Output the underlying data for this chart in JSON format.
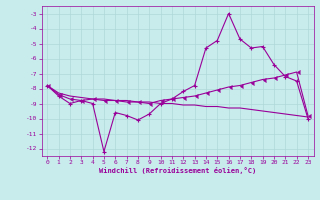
{
  "xlabel": "Windchill (Refroidissement éolien,°C)",
  "bg_color": "#c8ecec",
  "grid_color": "#b0d8d8",
  "line_color": "#990099",
  "xlim": [
    -0.5,
    23.5
  ],
  "ylim": [
    -12.5,
    -2.5
  ],
  "yticks": [
    -12,
    -11,
    -10,
    -9,
    -8,
    -7,
    -6,
    -5,
    -4,
    -3
  ],
  "xticks": [
    0,
    1,
    2,
    3,
    4,
    5,
    6,
    7,
    8,
    9,
    10,
    11,
    12,
    13,
    14,
    15,
    16,
    17,
    18,
    19,
    20,
    21,
    22,
    23
  ],
  "series1_x": [
    0,
    1,
    2,
    3,
    4,
    5,
    6,
    7,
    8,
    9,
    10,
    11,
    12,
    13,
    14,
    15,
    16,
    17,
    18,
    19,
    20,
    21,
    22,
    23
  ],
  "series1_y": [
    -7.8,
    -8.5,
    -9.0,
    -8.8,
    -9.0,
    -12.2,
    -9.6,
    -9.8,
    -10.1,
    -9.7,
    -9.0,
    -8.7,
    -8.2,
    -7.8,
    -5.3,
    -4.8,
    -3.0,
    -4.7,
    -5.3,
    -5.2,
    -6.4,
    -7.2,
    -7.5,
    -10.0
  ],
  "series2_x": [
    0,
    1,
    2,
    3,
    4,
    5,
    6,
    7,
    8,
    9,
    10,
    11,
    12,
    13,
    14,
    15,
    16,
    17,
    18,
    19,
    20,
    21,
    22,
    23
  ],
  "series2_y": [
    -7.8,
    -8.4,
    -8.7,
    -8.8,
    -8.7,
    -8.8,
    -8.8,
    -8.9,
    -8.9,
    -9.0,
    -8.8,
    -8.7,
    -8.6,
    -8.5,
    -8.3,
    -8.1,
    -7.9,
    -7.8,
    -7.6,
    -7.4,
    -7.3,
    -7.1,
    -6.9,
    -9.8
  ],
  "series3_x": [
    0,
    1,
    2,
    3,
    4,
    5,
    6,
    7,
    8,
    9,
    10,
    11,
    12,
    13,
    14,
    15,
    16,
    17,
    18,
    19,
    20,
    21,
    22,
    23
  ],
  "series3_y": [
    -7.8,
    -8.3,
    -8.5,
    -8.6,
    -8.7,
    -8.7,
    -8.8,
    -8.8,
    -8.9,
    -8.9,
    -9.0,
    -9.0,
    -9.1,
    -9.1,
    -9.2,
    -9.2,
    -9.3,
    -9.3,
    -9.4,
    -9.5,
    -9.6,
    -9.7,
    -9.8,
    -9.9
  ]
}
